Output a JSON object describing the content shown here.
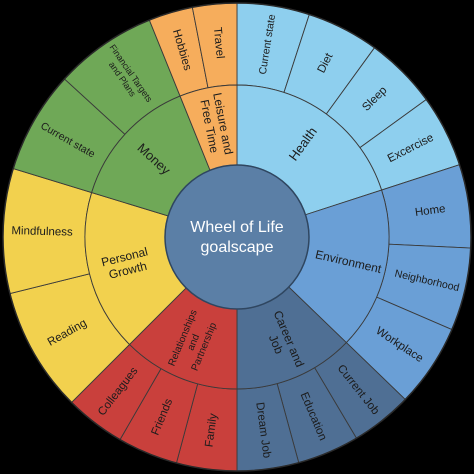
{
  "center": {
    "lines": [
      "Wheel of Life",
      "goalscape"
    ],
    "color": "#5b7fa6"
  },
  "sectors": [
    {
      "name": "Health",
      "color": "#8ecfee",
      "subs": [
        "Current state",
        "Diet",
        "Sleep",
        "Excercise"
      ]
    },
    {
      "name": "Environment",
      "color": "#6a9fd6",
      "subs": [
        "Home",
        "Neighborhood",
        "Workplace"
      ]
    },
    {
      "name": "Career and Job",
      "color": "#4f6f94",
      "subs": [
        "Current Job",
        "Education",
        "Dream Job"
      ]
    },
    {
      "name": "Relationships and Partnership",
      "color": "#c9403c",
      "subs": [
        "Family",
        "Friends",
        "Colleagues"
      ]
    },
    {
      "name": "Personal Growth",
      "color": "#f2d14e",
      "subs": [
        "Reading",
        "Mindfulness"
      ]
    },
    {
      "name": "Money",
      "color": "#6fa857",
      "subs": [
        "Current state",
        "Financial Targets and Plans"
      ]
    },
    {
      "name": "Leisure and Free Time",
      "color": "#f6ad5c",
      "subs": [
        "Hobbies",
        "Travel"
      ]
    }
  ]
}
